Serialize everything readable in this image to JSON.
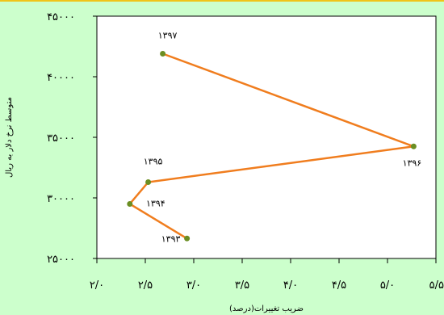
{
  "colors": {
    "page_background": "#ccffcc",
    "plot_background": "#ffffff",
    "line": "#f07d1e",
    "marker": "#6b8e23",
    "top_border": "#f0c419"
  },
  "chart_data": {
    "type": "scatter",
    "connected": true,
    "xlabel": "ضریب تغییرات(درصد)",
    "ylabel": "متوسط نرخ دلار به ریال",
    "xlim": [
      2.0,
      5.5
    ],
    "ylim": [
      25000,
      45000
    ],
    "grid": false,
    "x_ticks": [
      2.0,
      2.5,
      3.0,
      3.5,
      4.0,
      4.5,
      5.0,
      5.5
    ],
    "x_tick_labels": [
      "۲/۰",
      "۲/۵",
      "۳/۰",
      "۳/۵",
      "۴/۰",
      "۴/۵",
      "۵/۰",
      "۵/۵"
    ],
    "y_ticks": [
      25000,
      30000,
      35000,
      40000,
      45000
    ],
    "y_tick_labels": [
      "۲۵۰۰۰",
      "۳۰۰۰۰",
      "۳۵۰۰۰",
      "۴۰۰۰۰",
      "۴۵۰۰۰"
    ],
    "points": [
      {
        "label": "۱۳۹۳",
        "x": 2.93,
        "y": 26650
      },
      {
        "label": "۱۳۹۴",
        "x": 2.34,
        "y": 29500
      },
      {
        "label": "۱۳۹۵",
        "x": 2.53,
        "y": 31300
      },
      {
        "label": "۱۳۹۶",
        "x": 5.27,
        "y": 34250
      },
      {
        "label": "۱۳۹۷",
        "x": 2.68,
        "y": 41900
      }
    ]
  }
}
